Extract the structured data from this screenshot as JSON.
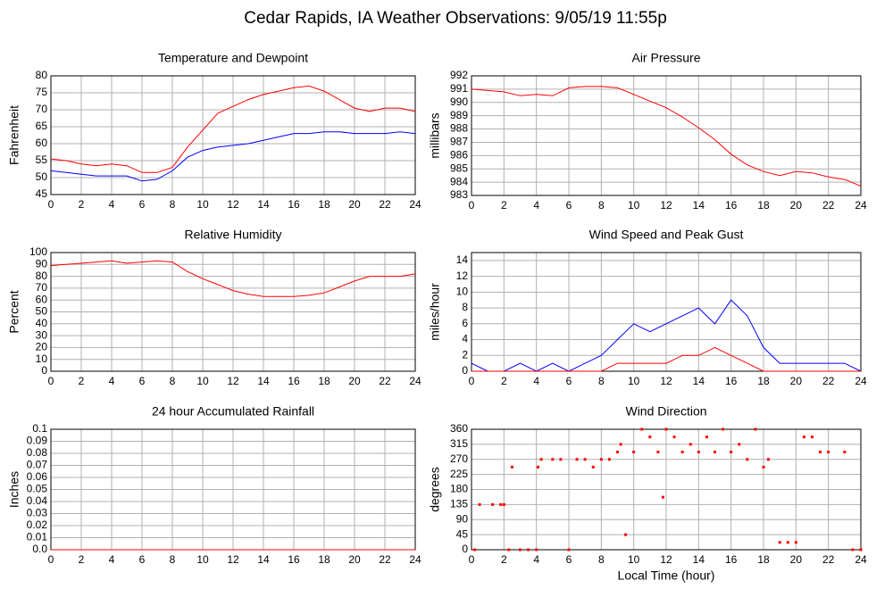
{
  "title": "Cedar Rapids, IA Weather Observations: 9/05/19 11:55p",
  "chart_data": [
    {
      "type": "line",
      "title": "Temperature and Dewpoint",
      "ylabel": "Fahrenheit",
      "grid": true,
      "xlim": [
        0,
        24
      ],
      "xticks": [
        0,
        2,
        4,
        6,
        8,
        10,
        12,
        14,
        16,
        18,
        20,
        22,
        24
      ],
      "ylim": [
        45,
        80
      ],
      "yticks": [
        45,
        50,
        55,
        60,
        65,
        70,
        75,
        80
      ],
      "x": [
        0,
        1,
        2,
        3,
        4,
        5,
        6,
        7,
        8,
        9,
        10,
        11,
        12,
        13,
        14,
        15,
        16,
        17,
        18,
        19,
        20,
        21,
        22,
        23,
        24
      ],
      "series": [
        {
          "name": "Temperature",
          "color": "#ff0000",
          "values": [
            55.5,
            55,
            54,
            53.5,
            54,
            53.5,
            51.5,
            51.5,
            53,
            59,
            64,
            69,
            71,
            73,
            74.5,
            75.5,
            76.5,
            77,
            75.5,
            73,
            70.5,
            69.5,
            70.5,
            70.5,
            69.5
          ]
        },
        {
          "name": "Dewpoint",
          "color": "#0000ff",
          "values": [
            52,
            51.5,
            51,
            50.5,
            50.5,
            50.5,
            49,
            49.5,
            52,
            56,
            58,
            59,
            59.5,
            60,
            61,
            62,
            63,
            63,
            63.5,
            63.5,
            63,
            63,
            63,
            63.5,
            63
          ]
        }
      ]
    },
    {
      "type": "line",
      "title": "Air Pressure",
      "ylabel": "millibars",
      "grid": true,
      "xlim": [
        0,
        24
      ],
      "xticks": [
        0,
        2,
        4,
        6,
        8,
        10,
        12,
        14,
        16,
        18,
        20,
        22,
        24
      ],
      "ylim": [
        983,
        992
      ],
      "yticks": [
        983,
        984,
        985,
        986,
        987,
        988,
        989,
        990,
        991,
        992
      ],
      "x": [
        0,
        1,
        2,
        3,
        4,
        5,
        6,
        7,
        8,
        9,
        10,
        11,
        12,
        13,
        14,
        15,
        16,
        17,
        18,
        19,
        20,
        21,
        22,
        23,
        24
      ],
      "series": [
        {
          "name": "Pressure",
          "color": "#ff0000",
          "values": [
            991,
            990.9,
            990.8,
            990.5,
            990.6,
            990.5,
            991.1,
            991.2,
            991.2,
            991.1,
            990.6,
            990.1,
            989.6,
            988.9,
            988.1,
            987.2,
            986.1,
            985.3,
            984.8,
            984.5,
            984.8,
            984.7,
            984.4,
            984.2,
            983.7
          ]
        }
      ]
    },
    {
      "type": "line",
      "title": "Relative Humidity",
      "ylabel": "Percent",
      "grid": true,
      "xlim": [
        0,
        24
      ],
      "xticks": [
        0,
        2,
        4,
        6,
        8,
        10,
        12,
        14,
        16,
        18,
        20,
        22,
        24
      ],
      "ylim": [
        0,
        100
      ],
      "yticks": [
        0,
        10,
        20,
        30,
        40,
        50,
        60,
        70,
        80,
        90,
        100
      ],
      "x": [
        0,
        1,
        2,
        3,
        4,
        5,
        6,
        7,
        8,
        9,
        10,
        11,
        12,
        13,
        14,
        15,
        16,
        17,
        18,
        19,
        20,
        21,
        22,
        23,
        24
      ],
      "series": [
        {
          "name": "Humidity",
          "color": "#ff0000",
          "values": [
            89,
            90,
            91,
            92,
            93,
            91,
            92,
            93,
            92,
            84,
            78,
            73,
            68,
            65,
            63,
            63,
            63,
            64,
            66,
            71,
            76,
            80,
            80,
            80,
            82
          ]
        }
      ]
    },
    {
      "type": "line",
      "title": "Wind Speed and Peak Gust",
      "ylabel": "miles/hour",
      "grid": true,
      "xlim": [
        0,
        24
      ],
      "xticks": [
        0,
        2,
        4,
        6,
        8,
        10,
        12,
        14,
        16,
        18,
        20,
        22,
        24
      ],
      "ylim": [
        0,
        15
      ],
      "yticks": [
        0,
        2,
        4,
        6,
        8,
        10,
        12,
        14
      ],
      "x": [
        0,
        1,
        2,
        3,
        4,
        5,
        6,
        7,
        8,
        9,
        10,
        11,
        12,
        13,
        14,
        15,
        16,
        17,
        18,
        19,
        20,
        21,
        22,
        23,
        24
      ],
      "series": [
        {
          "name": "Wind Speed",
          "color": "#0000ff",
          "values": [
            1,
            0,
            0,
            1,
            0,
            1,
            0,
            1,
            2,
            4,
            6,
            5,
            6,
            7,
            8,
            6,
            9,
            7,
            3,
            1,
            1,
            1,
            1,
            1,
            0
          ]
        },
        {
          "name": "Peak Gust",
          "color": "#ff0000",
          "values": [
            0,
            0,
            0,
            0,
            0,
            0,
            0,
            0,
            0,
            1,
            1,
            1,
            1,
            2,
            2,
            3,
            2,
            1,
            0,
            0,
            0,
            0,
            0,
            0,
            0
          ]
        }
      ]
    },
    {
      "type": "line",
      "title": "24 hour Accumulated Rainfall",
      "ylabel": "Inches",
      "grid": true,
      "xlim": [
        0,
        24
      ],
      "xticks": [
        0,
        2,
        4,
        6,
        8,
        10,
        12,
        14,
        16,
        18,
        20,
        22,
        24
      ],
      "ylim": [
        0,
        0.1
      ],
      "yticks": [
        {
          "value": 0,
          "label": "0.0"
        },
        0.01,
        0.02,
        0.03,
        0.04,
        0.05,
        0.06,
        0.07,
        0.08,
        0.09,
        0.1
      ],
      "x": [
        0,
        24
      ],
      "series": [
        {
          "name": "Rainfall",
          "color": "#ff0000",
          "values": [
            0,
            0
          ]
        }
      ]
    },
    {
      "type": "scatter",
      "title": "Wind Direction",
      "ylabel": "degrees",
      "xlabel": "Local Time (hour)",
      "grid": true,
      "xlim": [
        0,
        24
      ],
      "xticks": [
        0,
        2,
        4,
        6,
        8,
        10,
        12,
        14,
        16,
        18,
        20,
        22,
        24
      ],
      "ylim": [
        0,
        360
      ],
      "yticks": [
        0,
        45,
        90,
        135,
        180,
        225,
        270,
        315,
        360
      ],
      "x": [
        0.2,
        0.5,
        1.3,
        1.8,
        2,
        2.3,
        2.5,
        3,
        3.5,
        4,
        4.1,
        4.3,
        5,
        5.5,
        6,
        6.5,
        7,
        7.5,
        8,
        8.5,
        9,
        9.2,
        9.5,
        10,
        10.5,
        11,
        11.5,
        11.8,
        12,
        12.5,
        13,
        13.5,
        14,
        14.5,
        15,
        15.5,
        16,
        16.5,
        17,
        17.5,
        18,
        18.3,
        19,
        19.5,
        20,
        20.5,
        21,
        21.5,
        22,
        23,
        23.5,
        24
      ],
      "series": [
        {
          "name": "Direction",
          "color": "#ff0000",
          "values": [
            0,
            135,
            135,
            135,
            135,
            0,
            247,
            0,
            0,
            0,
            247,
            270,
            270,
            270,
            0,
            270,
            270,
            247,
            270,
            270,
            292,
            315,
            45,
            292,
            360,
            337,
            292,
            157,
            360,
            337,
            292,
            315,
            292,
            337,
            292,
            360,
            292,
            315,
            270,
            360,
            247,
            270,
            22,
            22,
            22,
            337,
            337,
            292,
            292,
            292,
            0,
            0
          ]
        }
      ]
    }
  ]
}
